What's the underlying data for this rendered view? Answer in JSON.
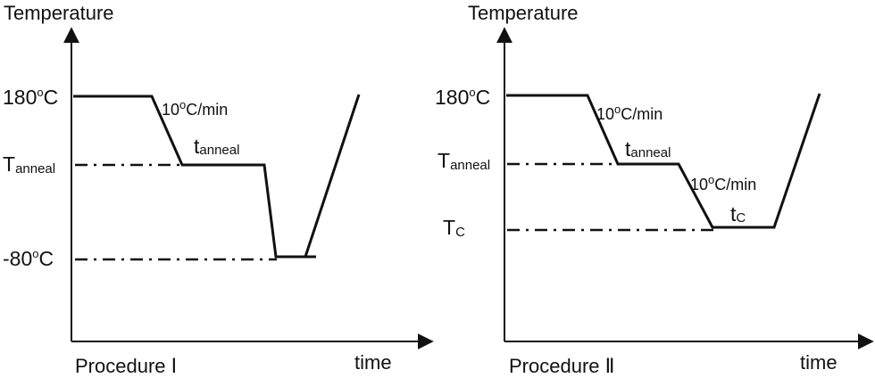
{
  "colors": {
    "ink": "#111111",
    "background": "#ffffff"
  },
  "panels": [
    {
      "y_axis_label": "Temperature",
      "x_axis_label": "time",
      "procedure_label": "Procedure Ⅰ",
      "level_labels": {
        "t180": {
          "base": "180",
          "sup": "o",
          "rest": "C"
        },
        "tanneal": {
          "base": "T",
          "sub": "anneal"
        },
        "tlow": {
          "base": "-80",
          "sup": "o",
          "rest": "C"
        }
      },
      "rate_label": {
        "base": "10",
        "sup": "o",
        "rest": "C/min"
      },
      "hold_label": {
        "base": "t",
        "sub": "anneal"
      }
    },
    {
      "y_axis_label": "Temperature",
      "x_axis_label": "time",
      "procedure_label": "Procedure Ⅱ",
      "level_labels": {
        "t180": {
          "base": "180",
          "sup": "o",
          "rest": "C"
        },
        "tanneal": {
          "base": "T",
          "sub": "anneal"
        },
        "tc": {
          "base": "T",
          "sub": "C"
        }
      },
      "rate_label_1": {
        "base": "10",
        "sup": "o",
        "rest": "C/min"
      },
      "hold_label_1": {
        "base": "t",
        "sub": "anneal"
      },
      "rate_label_2": {
        "base": "10",
        "sup": "o",
        "rest": "C/min"
      },
      "hold_label_2": {
        "base": "t",
        "sub": "C"
      }
    }
  ]
}
